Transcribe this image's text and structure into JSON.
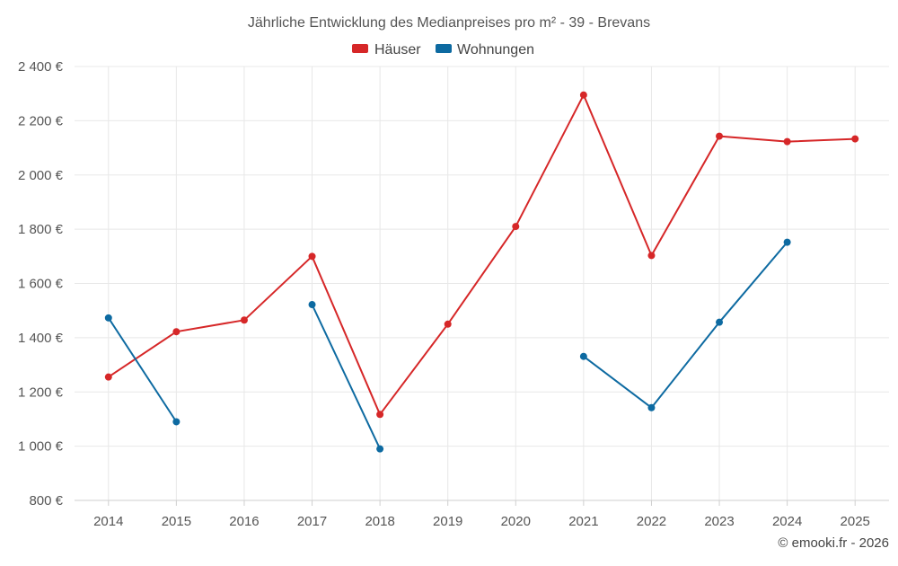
{
  "chart_data": {
    "type": "line",
    "title": "Jährliche Entwicklung des Medianpreises pro m² - 39 - Brevans",
    "x": [
      "2014",
      "2015",
      "2016",
      "2017",
      "2018",
      "2019",
      "2020",
      "2021",
      "2022",
      "2023",
      "2024",
      "2025"
    ],
    "ylim": [
      800,
      2400
    ],
    "yticks": [
      800,
      1000,
      1200,
      1400,
      1600,
      1800,
      2000,
      2200,
      2400
    ],
    "ytick_labels": [
      "800 €",
      "1 000 €",
      "1 200 €",
      "1 400 €",
      "1 600 €",
      "1 800 €",
      "2 000 €",
      "2 200 €",
      "2 400 €"
    ],
    "xlabel": "",
    "ylabel": "",
    "grid": true,
    "legend_position": "top-center",
    "series": [
      {
        "name": "Häuser",
        "color": "#d62728",
        "values": [
          1255,
          1422,
          1465,
          1700,
          1117,
          1450,
          1810,
          2295,
          1703,
          2143,
          2123,
          2133
        ]
      },
      {
        "name": "Wohnungen",
        "color": "#0d6aa1",
        "values": [
          1473,
          1090,
          null,
          1522,
          990,
          null,
          null,
          1331,
          1142,
          1457,
          1752,
          null
        ]
      }
    ]
  },
  "credit": "© emooki.fr - 2026"
}
